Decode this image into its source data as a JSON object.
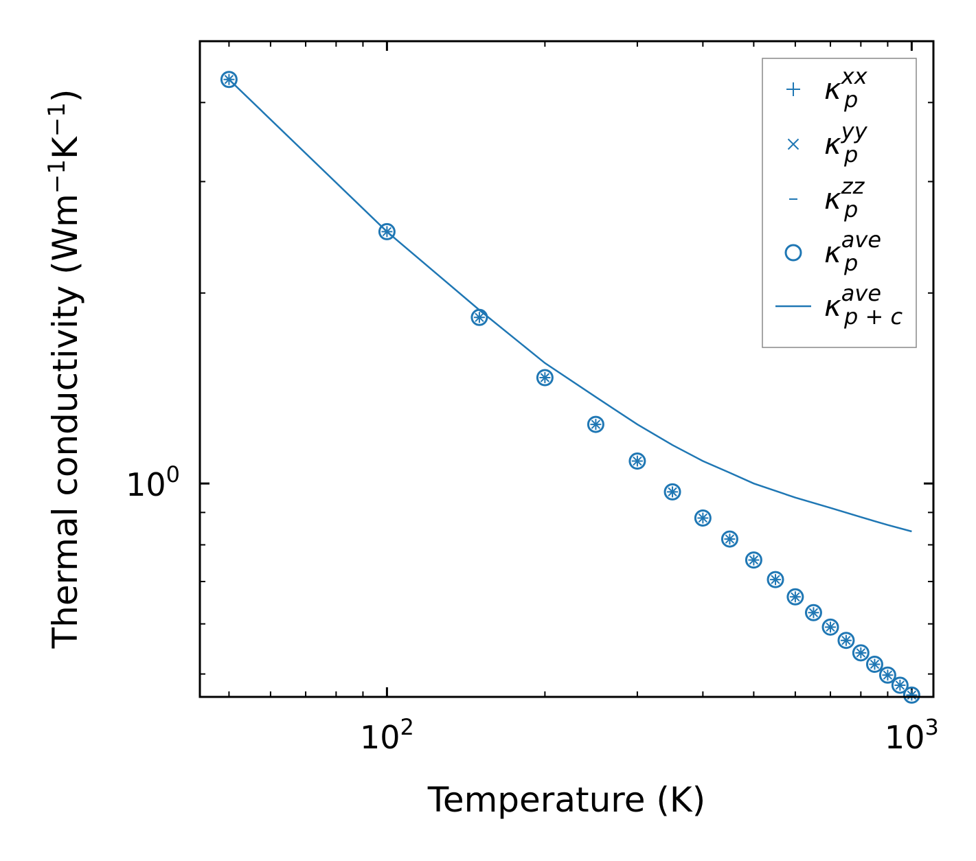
{
  "chart_data": {
    "type": "scatter",
    "xscale": "log",
    "yscale": "log",
    "xlim": [
      44,
      1100
    ],
    "ylim": [
      0.46,
      5.0
    ],
    "xlabel": "Temperature (K)",
    "ylabel_main": "Thermal conductivity (Wm",
    "ylabel_exp1": "−1",
    "ylabel_mid": "K",
    "ylabel_exp2": "−1",
    "ylabel_end": ")",
    "x_ticks": [
      {
        "value": 100,
        "base": "10",
        "exp": "2"
      },
      {
        "value": 1000,
        "base": "10",
        "exp": "3"
      }
    ],
    "y_ticks": [
      {
        "value": 1,
        "base": "10",
        "exp": "0"
      }
    ],
    "legend_position": "top-right",
    "colors": {
      "series": "#1f77b4",
      "axes": "#000000",
      "legend_border": "#888888"
    },
    "series": [
      {
        "name": "κ_p^xx",
        "marker": "plus",
        "label_base": "κ",
        "label_sup": "xx",
        "label_sub": "p",
        "x": [
          50,
          100,
          150,
          200,
          250,
          300,
          350,
          400,
          450,
          500,
          550,
          600,
          650,
          700,
          750,
          800,
          850,
          900,
          950,
          1000
        ],
        "y": [
          4.35,
          2.5,
          1.83,
          1.47,
          1.24,
          1.085,
          0.97,
          0.882,
          0.817,
          0.757,
          0.705,
          0.662,
          0.625,
          0.593,
          0.565,
          0.54,
          0.518,
          0.498,
          0.48,
          0.463
        ]
      },
      {
        "name": "κ_p^yy",
        "marker": "x",
        "label_base": "κ",
        "label_sup": "yy",
        "label_sub": "p",
        "x": [
          50,
          100,
          150,
          200,
          250,
          300,
          350,
          400,
          450,
          500,
          550,
          600,
          650,
          700,
          750,
          800,
          850,
          900,
          950,
          1000
        ],
        "y": [
          4.35,
          2.5,
          1.83,
          1.47,
          1.24,
          1.085,
          0.97,
          0.882,
          0.817,
          0.757,
          0.705,
          0.662,
          0.625,
          0.593,
          0.565,
          0.54,
          0.518,
          0.498,
          0.48,
          0.463
        ]
      },
      {
        "name": "κ_p^zz",
        "marker": "hline",
        "label_base": "κ",
        "label_sup": "zz",
        "label_sub": "p",
        "x": [
          50,
          100,
          150,
          200,
          250,
          300,
          350,
          400,
          450,
          500,
          550,
          600,
          650,
          700,
          750,
          800,
          850,
          900,
          950,
          1000
        ],
        "y": [
          4.35,
          2.5,
          1.83,
          1.47,
          1.24,
          1.085,
          0.97,
          0.882,
          0.817,
          0.757,
          0.705,
          0.662,
          0.625,
          0.593,
          0.565,
          0.54,
          0.518,
          0.498,
          0.48,
          0.463
        ]
      },
      {
        "name": "κ_p^ave",
        "marker": "circle",
        "label_base": "κ",
        "label_sup": "ave",
        "label_sub": "p",
        "x": [
          50,
          100,
          150,
          200,
          250,
          300,
          350,
          400,
          450,
          500,
          550,
          600,
          650,
          700,
          750,
          800,
          850,
          900,
          950,
          1000
        ],
        "y": [
          4.35,
          2.5,
          1.83,
          1.47,
          1.24,
          1.085,
          0.97,
          0.882,
          0.817,
          0.757,
          0.705,
          0.662,
          0.625,
          0.593,
          0.565,
          0.54,
          0.518,
          0.498,
          0.48,
          0.463
        ]
      },
      {
        "name": "κ_p+c^ave",
        "marker": "line",
        "label_base": "κ",
        "label_sup": "ave",
        "label_sub": "p + c",
        "x": [
          50,
          100,
          150,
          200,
          250,
          300,
          350,
          400,
          450,
          500,
          600,
          700,
          800,
          900,
          1000
        ],
        "y": [
          4.35,
          2.5,
          1.88,
          1.55,
          1.37,
          1.24,
          1.15,
          1.085,
          1.04,
          1.0,
          0.95,
          0.915,
          0.885,
          0.86,
          0.84
        ]
      }
    ]
  }
}
